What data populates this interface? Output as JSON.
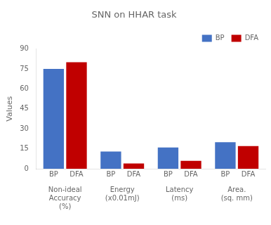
{
  "chart_data": {
    "type": "bar",
    "title": "SNN on HHAR task",
    "ylabel": "Values",
    "categories": [
      "Non-ideal\nAccuracy\n(%)",
      "Energy\n(x0.01mJ)",
      "Latency\n(ms)",
      "Area.\n(sq. mm)"
    ],
    "series": [
      {
        "name": "BP",
        "color": "#4472C4",
        "values": [
          75,
          13,
          16,
          20
        ]
      },
      {
        "name": "DFA",
        "color": "#C00000",
        "values": [
          80,
          4,
          6,
          17
        ]
      }
    ],
    "ylim": [
      0,
      90
    ],
    "yticks": [
      0,
      15,
      30,
      45,
      60,
      75,
      90
    ],
    "grid": false,
    "legend": "upper right"
  }
}
